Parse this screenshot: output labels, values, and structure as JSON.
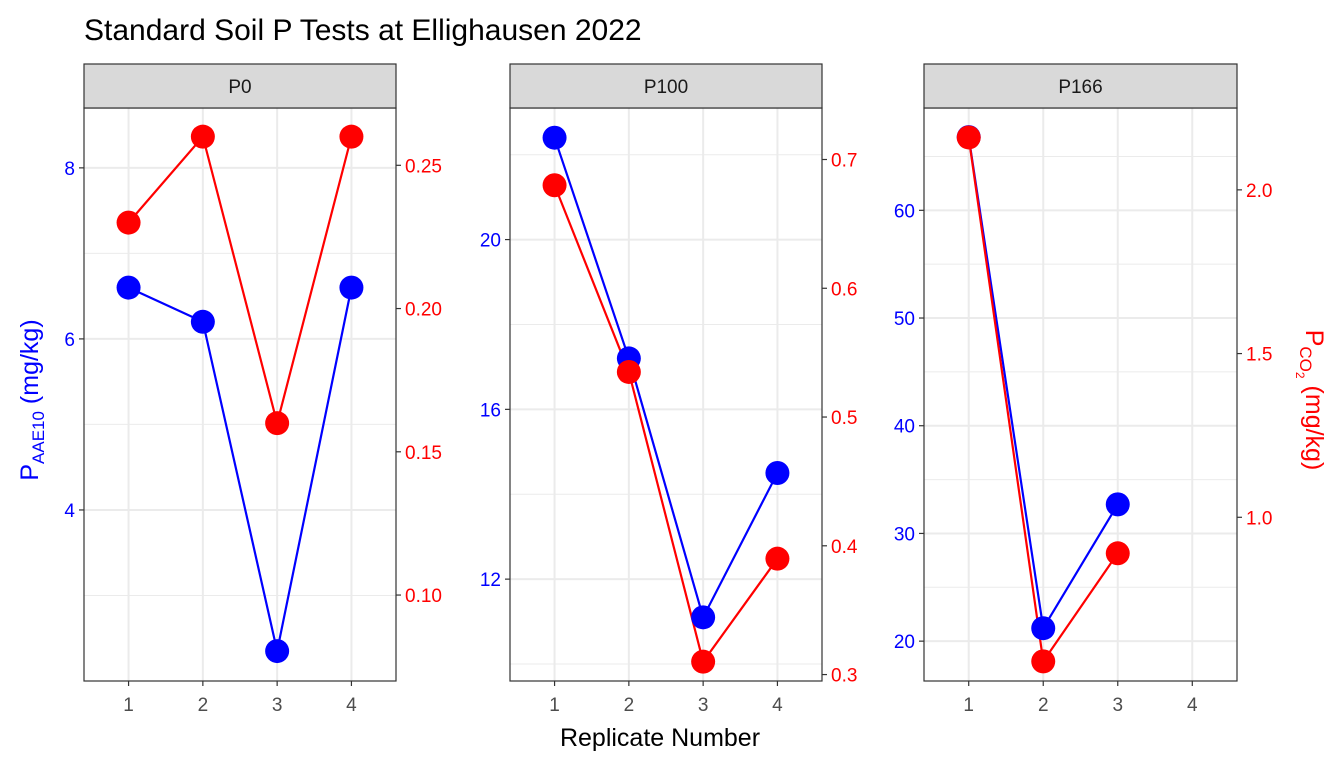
{
  "title": "Standard Soil P Tests at Ellighausen 2022",
  "xlabel": "Replicate Number",
  "ylabel_left": {
    "main": "P",
    "sub": "AAE10",
    "unit": " (mg/kg)"
  },
  "ylabel_right": {
    "main": "P",
    "sub": "CO",
    "subsub": "2",
    "unit": " (mg/kg)"
  },
  "colors": {
    "aae10": "#0000FF",
    "co2": "#FF0000",
    "strip_fill": "#D9D9D9",
    "grid": "#EBEBEB",
    "axis_text": "#4D4D4D"
  },
  "chart_data": [
    {
      "type": "line",
      "panel": "P0",
      "x": [
        1,
        2,
        3,
        4
      ],
      "series": [
        {
          "axis": "left",
          "values": [
            6.6,
            6.2,
            2.35,
            6.6
          ]
        },
        {
          "axis": "right",
          "values": [
            0.23,
            0.26,
            0.16,
            0.26
          ]
        }
      ],
      "left_ylim": [
        2.0,
        8.7
      ],
      "left_ticks": [
        4,
        6,
        8
      ],
      "right_ylim": [
        0.07,
        0.27
      ],
      "right_ticks": [
        0.1,
        0.15,
        0.2,
        0.25
      ],
      "right_tick_labels": [
        "0.10",
        "0.15",
        "0.20",
        "0.25"
      ],
      "xlim": [
        0.4,
        4.6
      ],
      "xticks": [
        1,
        2,
        3,
        4
      ]
    },
    {
      "type": "line",
      "panel": "P100",
      "x": [
        1,
        2,
        3,
        4
      ],
      "series": [
        {
          "axis": "left",
          "values": [
            22.4,
            17.2,
            11.1,
            14.5
          ]
        },
        {
          "axis": "right",
          "values": [
            0.68,
            0.535,
            0.31,
            0.39
          ]
        }
      ],
      "left_ylim": [
        9.6,
        23.1
      ],
      "left_ticks": [
        12,
        16,
        20
      ],
      "right_ylim": [
        0.295,
        0.74
      ],
      "right_ticks": [
        0.3,
        0.4,
        0.5,
        0.6,
        0.7
      ],
      "right_tick_labels": [
        "0.3",
        "0.4",
        "0.5",
        "0.6",
        "0.7"
      ],
      "xlim": [
        0.4,
        4.6
      ],
      "xticks": [
        1,
        2,
        3,
        4
      ]
    },
    {
      "type": "line",
      "panel": "P166",
      "x": [
        1,
        2,
        3,
        4
      ],
      "series": [
        {
          "axis": "left",
          "values": [
            66.8,
            21.2,
            32.7,
            null
          ]
        },
        {
          "axis": "right",
          "values": [
            2.16,
            0.56,
            0.89,
            null
          ]
        }
      ],
      "left_ylim": [
        16.3,
        69.5
      ],
      "left_ticks": [
        20,
        30,
        40,
        50,
        60
      ],
      "right_ylim": [
        0.5,
        2.25
      ],
      "right_ticks": [
        1.0,
        1.5,
        2.0
      ],
      "right_tick_labels": [
        "1.0",
        "1.5",
        "2.0"
      ],
      "xlim": [
        0.4,
        4.6
      ],
      "xticks": [
        1,
        2,
        3,
        4
      ]
    }
  ]
}
